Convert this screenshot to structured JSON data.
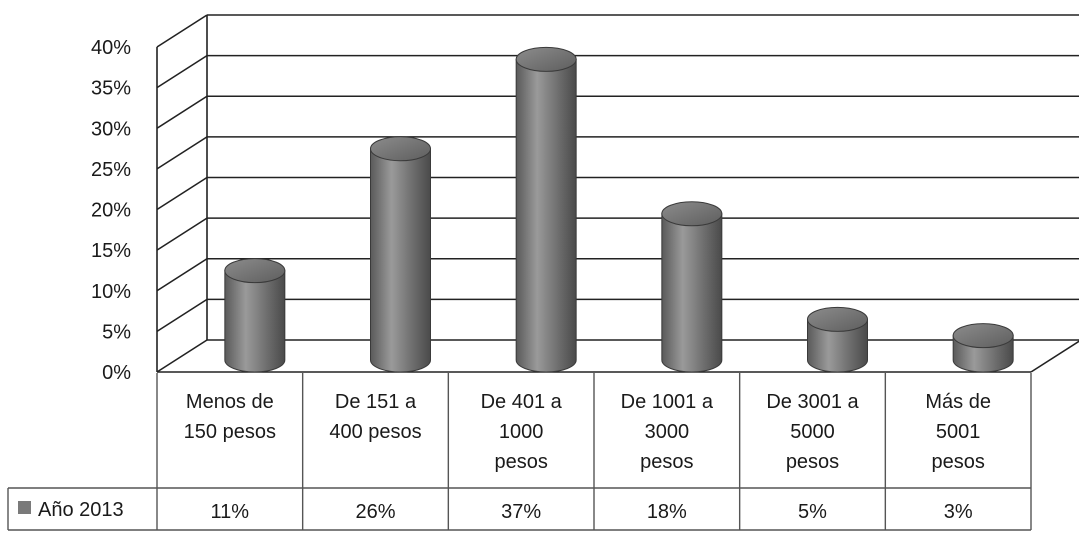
{
  "chart_data": {
    "type": "bar",
    "style": "3d-cylinder",
    "categories": [
      [
        "Menos de",
        "150 pesos"
      ],
      [
        "De 151 a",
        "400 pesos"
      ],
      [
        "De 401 a",
        "1000",
        "pesos"
      ],
      [
        "De 1001 a",
        "3000",
        "pesos"
      ],
      [
        "De 3001 a",
        "5000",
        "pesos"
      ],
      [
        "Más de",
        "5001",
        "pesos"
      ]
    ],
    "series": [
      {
        "name": "Año 2013",
        "values": [
          11,
          26,
          37,
          18,
          5,
          3
        ],
        "labels": [
          "11%",
          "26%",
          "37%",
          "18%",
          "5%",
          "3%"
        ],
        "color": "#7a7a7a"
      }
    ],
    "yticks": [
      "0%",
      "5%",
      "10%",
      "15%",
      "20%",
      "25%",
      "30%",
      "35%",
      "40%"
    ],
    "ylim": [
      0,
      40
    ],
    "grid": true,
    "legend": "data-table",
    "title": "",
    "xlabel": "",
    "ylabel": ""
  }
}
